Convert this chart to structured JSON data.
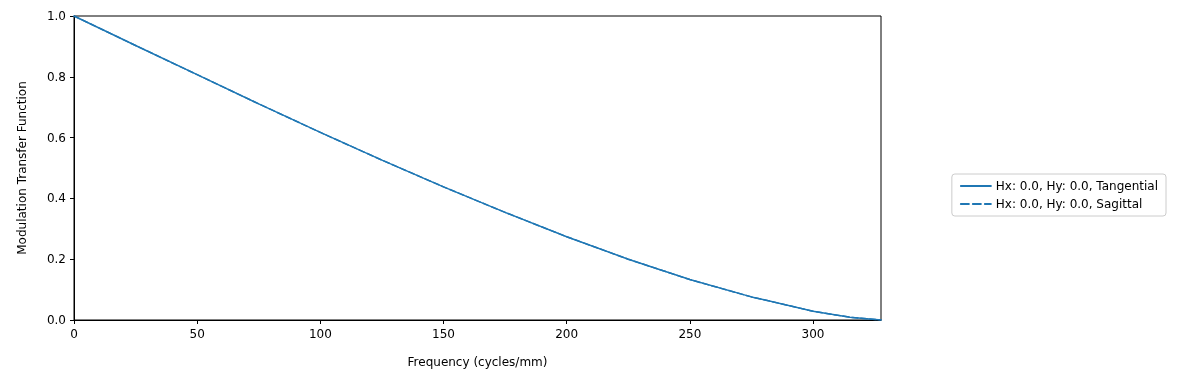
{
  "chart_data": {
    "type": "line",
    "xlabel": "Frequency (cycles/mm)",
    "ylabel": "Modulation Transfer Function",
    "x": [
      0,
      25,
      50,
      75,
      100,
      125,
      150,
      175,
      200,
      225,
      250,
      275,
      300,
      315,
      327.6
    ],
    "series": [
      {
        "name": "Hx: 0.0, Hy: 0.0, Tangential",
        "color": "#1f77b4",
        "line_style": "solid",
        "values": [
          1.0,
          0.903,
          0.807,
          0.711,
          0.617,
          0.526,
          0.438,
          0.354,
          0.274,
          0.2,
          0.133,
          0.076,
          0.029,
          0.009,
          0.0
        ]
      },
      {
        "name": "Hx: 0.0, Hy: 0.0, Sagittal",
        "color": "#1f77b4",
        "line_style": "dashed",
        "values": [
          1.0,
          0.903,
          0.807,
          0.711,
          0.617,
          0.526,
          0.438,
          0.354,
          0.274,
          0.2,
          0.133,
          0.076,
          0.029,
          0.009,
          0.0
        ]
      }
    ],
    "xlim": [
      0,
      327.6
    ],
    "xticks": [
      0,
      50,
      100,
      150,
      200,
      250,
      300
    ],
    "ylim": [
      0,
      1
    ],
    "yticks": [
      {
        "value": 0,
        "label": "0.0"
      },
      {
        "value": 0.2,
        "label": "0.2"
      },
      {
        "value": 0.4,
        "label": "0.4"
      },
      {
        "value": 0.6,
        "label": "0.6"
      },
      {
        "value": 0.8,
        "label": "0.8"
      },
      {
        "value": 1,
        "label": "1.0"
      }
    ],
    "grid": false,
    "legend": "right",
    "marker": "none"
  }
}
